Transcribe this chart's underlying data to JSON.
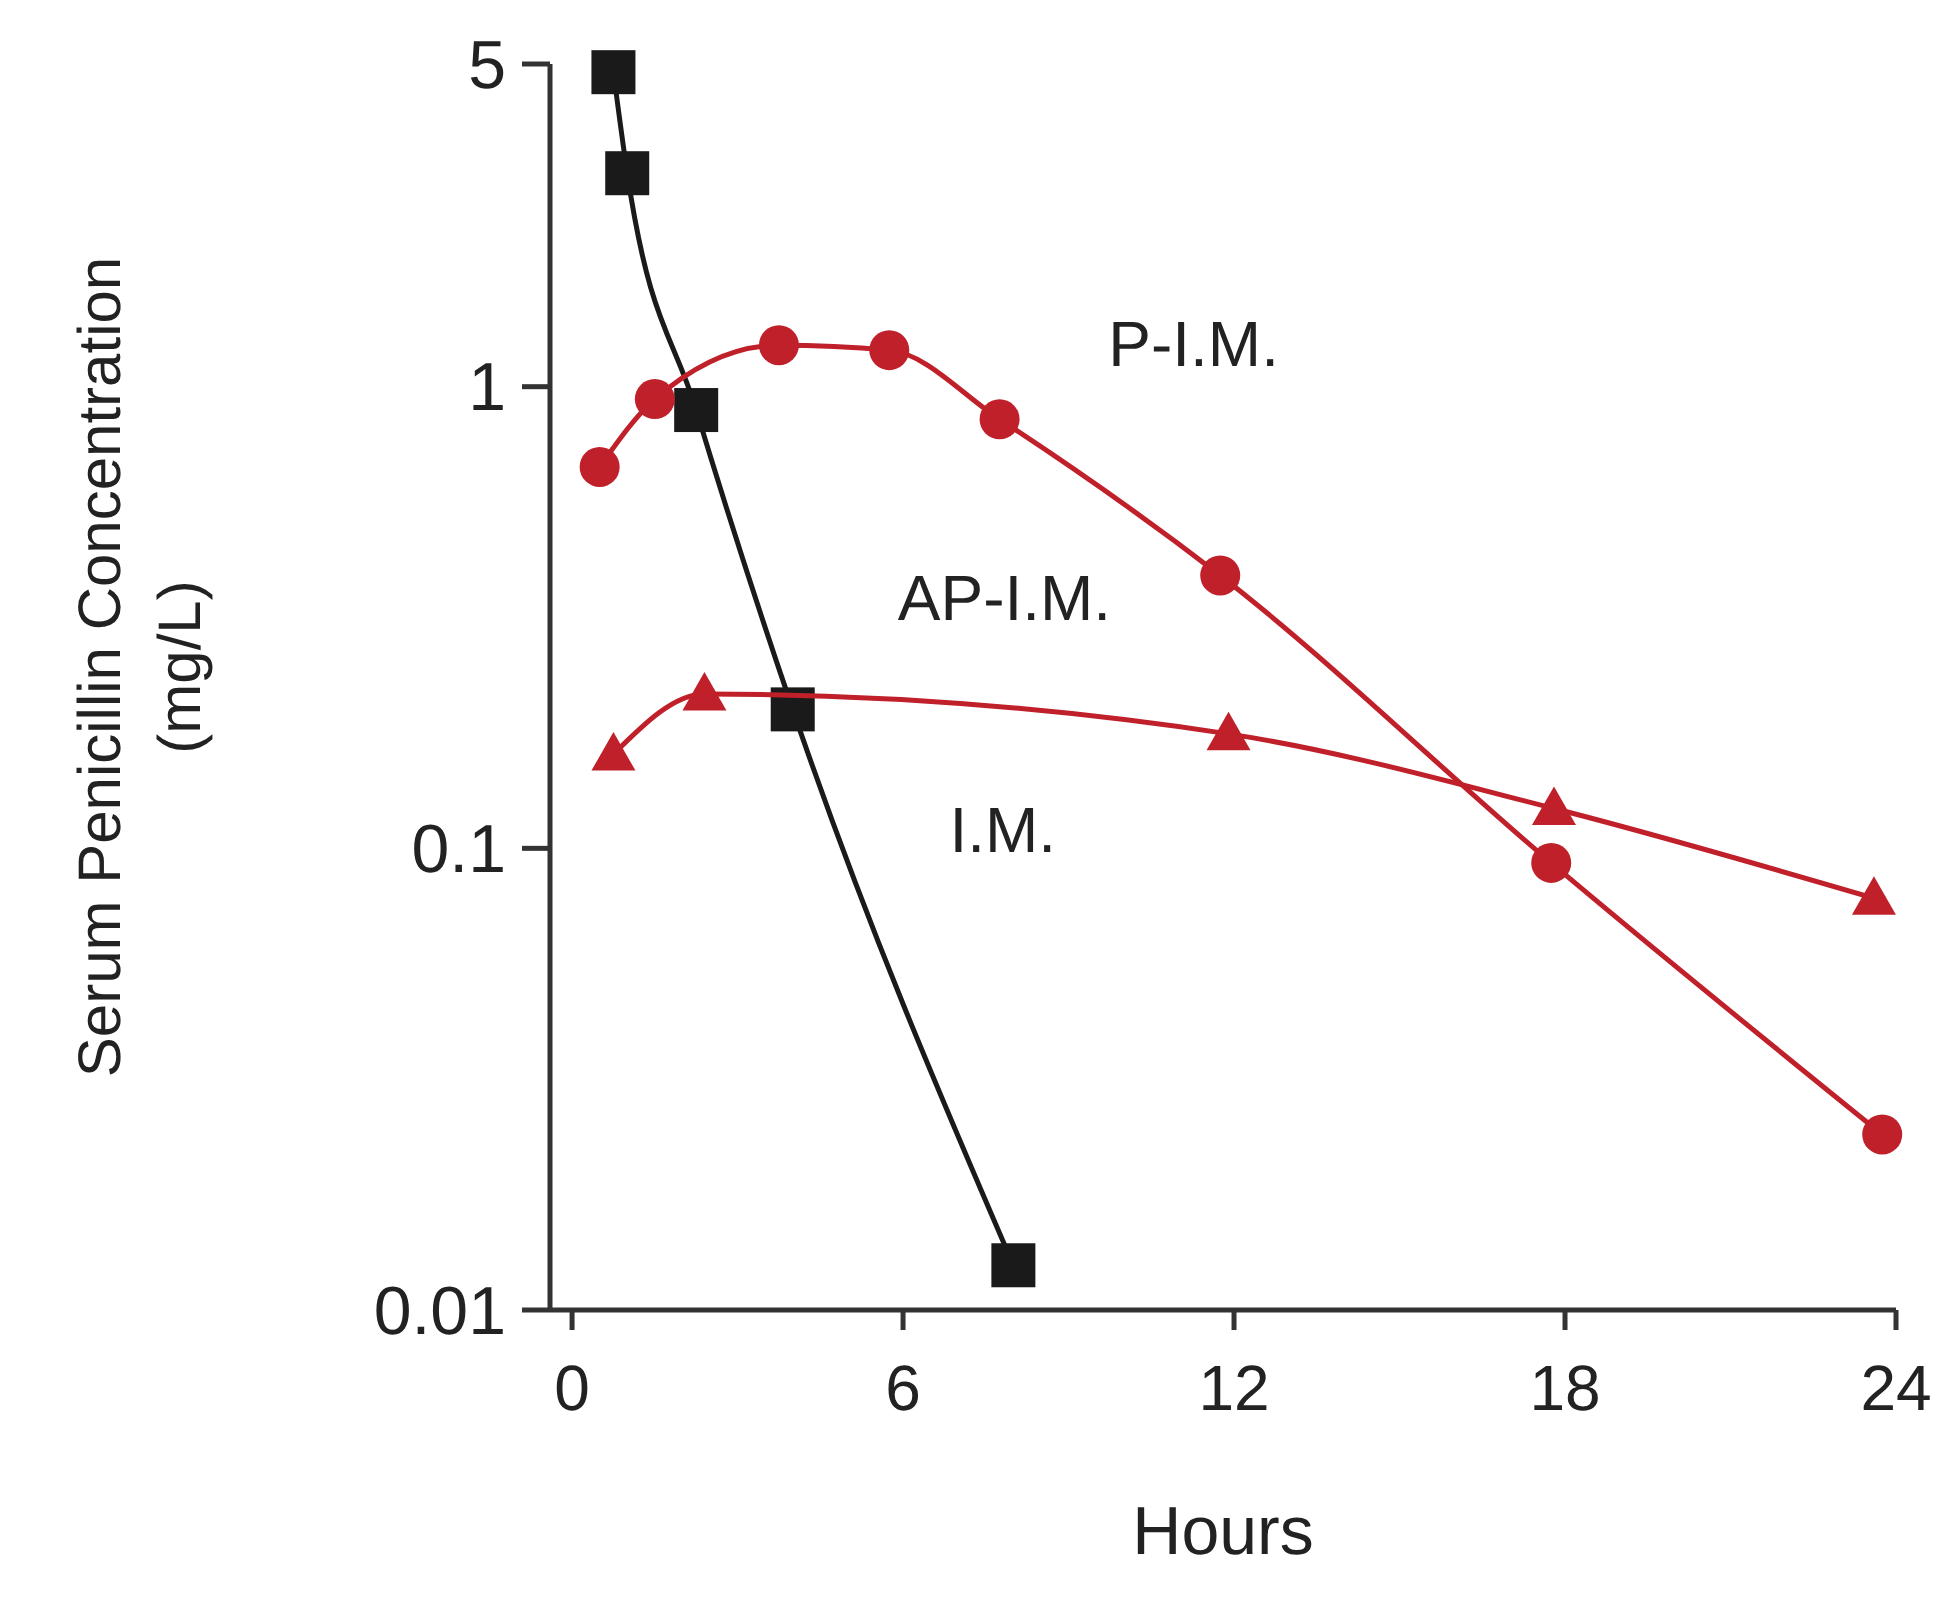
{
  "chart_data": {
    "type": "line",
    "xlabel": "Hours",
    "ylabel": "Serum Penicillin Concentration\n(mg/L)",
    "log": "y",
    "xlim": [
      -0.4,
      24
    ],
    "xticks": [
      0,
      6,
      12,
      18,
      24
    ],
    "ylim": [
      0.01,
      5
    ],
    "yticks": [
      0.01,
      0.1,
      1,
      5
    ],
    "grid": false,
    "line_style": "solid",
    "series": [
      {
        "name": "I.M.",
        "color": "#1a1a1a",
        "marker": "square",
        "x": [
          0.75,
          1,
          2.25,
          4,
          8
        ],
        "values": [
          4.8,
          2.9,
          0.89,
          0.2,
          0.0125
        ]
      },
      {
        "name": "P-I.M.",
        "color": "#c0202a",
        "marker": "circle",
        "x": [
          0.5,
          1.5,
          3.75,
          5.75,
          7.75,
          11.75,
          17.75,
          23.75
        ],
        "values": [
          0.67,
          0.94,
          1.23,
          1.2,
          0.85,
          0.39,
          0.093,
          0.024
        ]
      },
      {
        "name": "AP-I.M.",
        "color": "#c0202a",
        "marker": "triangle",
        "x": [
          0.75,
          2.4,
          11.9,
          17.8,
          23.6
        ],
        "values": [
          0.16,
          0.216,
          0.177,
          0.122,
          0.078
        ]
      }
    ]
  }
}
